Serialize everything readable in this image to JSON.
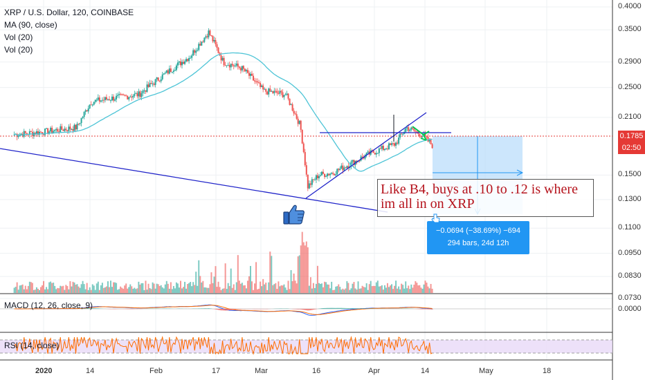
{
  "legend": {
    "symbol": "XRP / U.S. Dollar, 120, COINBASE",
    "ma": "MA (90, close)",
    "vol1": "Vol (20)",
    "vol2": "Vol (20)"
  },
  "price_axis": [
    "0.4000",
    "0.3500",
    "0.2900",
    "0.2500",
    "0.2100",
    "0.1500",
    "0.1300",
    "0.1100",
    "0.0950",
    "0.0830",
    "0.0730"
  ],
  "macd_axis": "0.0000",
  "current_price": {
    "value": "0.1785",
    "countdown": "02:50",
    "color": "#e53935"
  },
  "time_axis": [
    "2020",
    "14",
    "Feb",
    "17",
    "Mar",
    "16",
    "Apr",
    "14",
    "May",
    "18"
  ],
  "macd_legend": "MACD (12, 26, close, 9)",
  "rsi_legend": "RSI (14, close)",
  "annotation": "Like B4, buys at .10 to .12 is where im all in on XRP",
  "measure": {
    "line1": "−0.0694 (−38.69%) −694",
    "line2": "294 bars, 24d 12h"
  },
  "icons": {
    "thumb": "thumbs-up-icon"
  },
  "colors": {
    "up": "#26a69a",
    "down": "#ef5350",
    "ma": "#4dc4d6",
    "trend": "#1f23c9",
    "rsi": "#ff6d00",
    "macd": "#2962ff",
    "signal": "#ff6d00"
  },
  "chart_data": {
    "type": "candlestick",
    "title": "XRP / U.S. Dollar, 120, COINBASE",
    "ylim": [
      0.068,
      0.42
    ],
    "approx_close_path": [
      {
        "date": "2019-12-24",
        "close": 0.19
      },
      {
        "date": "2020-01-01",
        "close": 0.193
      },
      {
        "date": "2020-01-10",
        "close": 0.198
      },
      {
        "date": "2020-01-14",
        "close": 0.23
      },
      {
        "date": "2020-01-20",
        "close": 0.235
      },
      {
        "date": "2020-01-27",
        "close": 0.24
      },
      {
        "date": "2020-02-03",
        "close": 0.27
      },
      {
        "date": "2020-02-10",
        "close": 0.3
      },
      {
        "date": "2020-02-15",
        "close": 0.345
      },
      {
        "date": "2020-02-19",
        "close": 0.29
      },
      {
        "date": "2020-02-24",
        "close": 0.28
      },
      {
        "date": "2020-03-01",
        "close": 0.245
      },
      {
        "date": "2020-03-07",
        "close": 0.24
      },
      {
        "date": "2020-03-11",
        "close": 0.2
      },
      {
        "date": "2020-03-13",
        "close": 0.14
      },
      {
        "date": "2020-03-16",
        "close": 0.15
      },
      {
        "date": "2020-03-20",
        "close": 0.152
      },
      {
        "date": "2020-03-30",
        "close": 0.17
      },
      {
        "date": "2020-04-06",
        "close": 0.18
      },
      {
        "date": "2020-04-09",
        "close": 0.198
      },
      {
        "date": "2020-04-13",
        "close": 0.19
      },
      {
        "date": "2020-04-16",
        "close": 0.1785
      }
    ]
  }
}
